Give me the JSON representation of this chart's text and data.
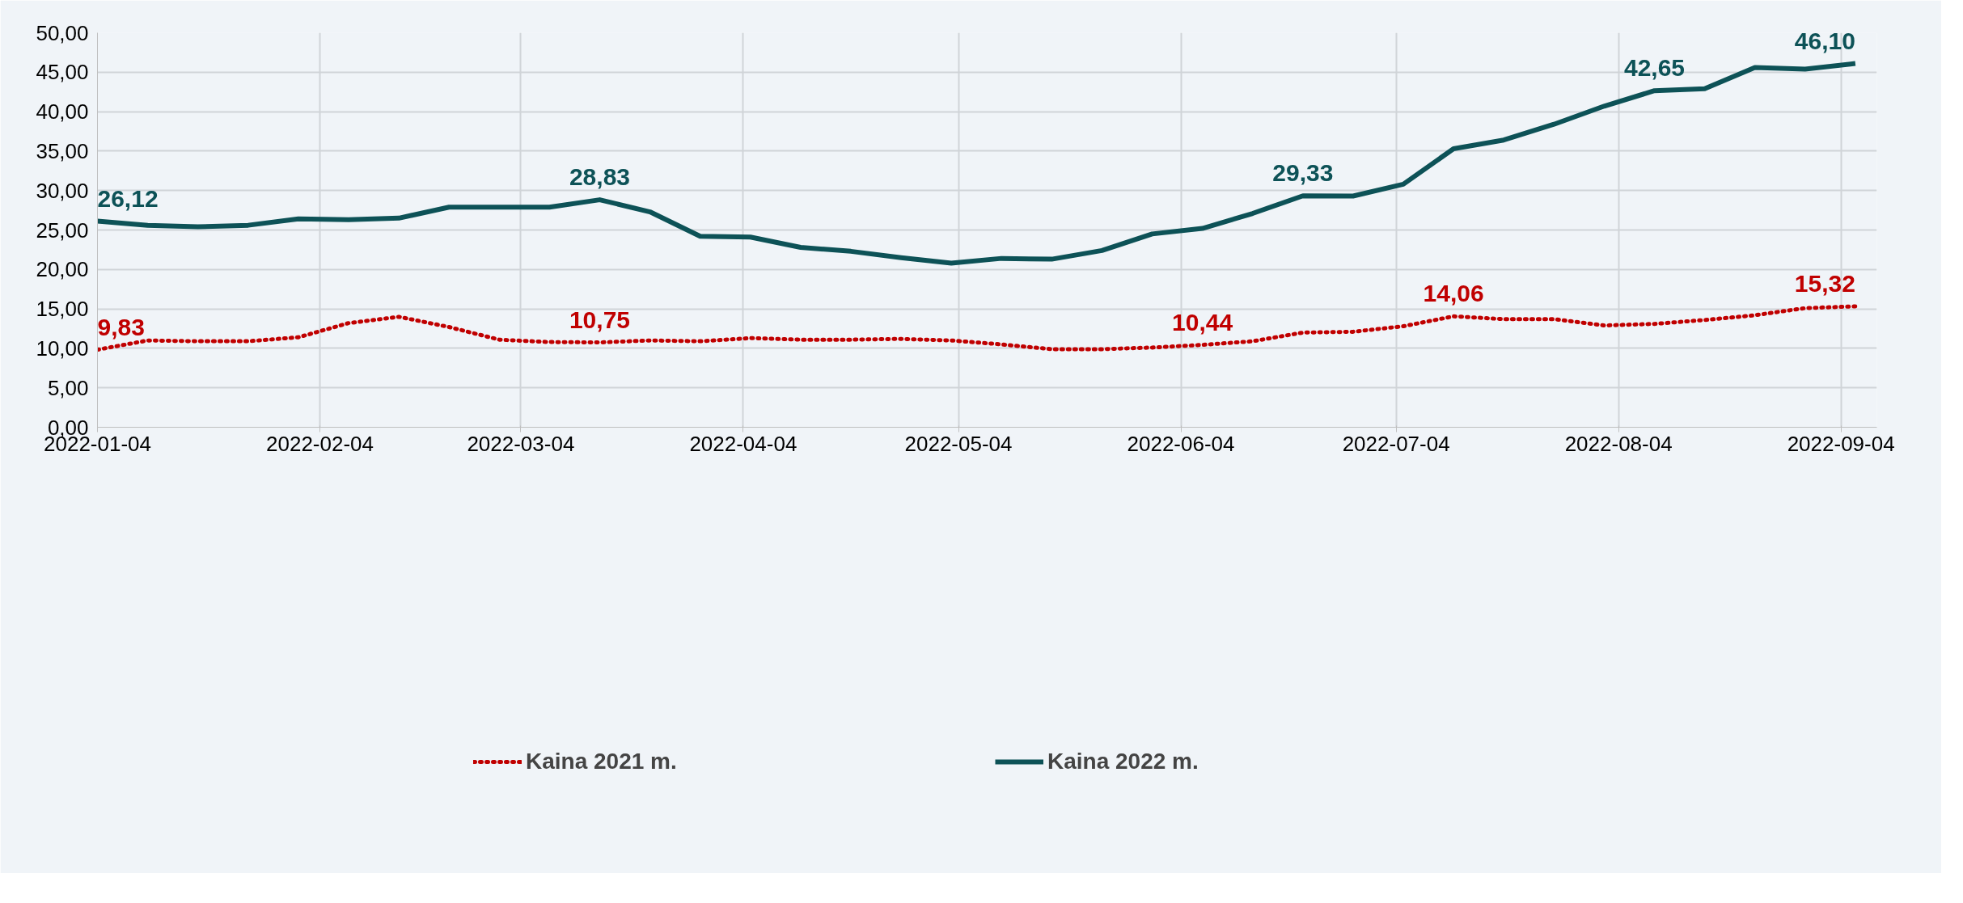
{
  "chart_data": {
    "type": "line",
    "x": [
      "2022-01-04",
      "2022-01-11",
      "2022-01-18",
      "2022-01-25",
      "2022-02-01",
      "2022-02-08",
      "2022-02-15",
      "2022-02-22",
      "2022-03-01",
      "2022-03-08",
      "2022-03-15",
      "2022-03-22",
      "2022-03-29",
      "2022-04-05",
      "2022-04-12",
      "2022-04-19",
      "2022-04-26",
      "2022-05-03",
      "2022-05-10",
      "2022-05-17",
      "2022-05-24",
      "2022-05-31",
      "2022-06-07",
      "2022-06-14",
      "2022-06-21",
      "2022-06-28",
      "2022-07-05",
      "2022-07-12",
      "2022-07-19",
      "2022-07-26",
      "2022-08-02",
      "2022-08-09",
      "2022-08-16",
      "2022-08-23",
      "2022-08-30",
      "2022-09-06"
    ],
    "series": [
      {
        "name": "Kaina 2021 m.",
        "color": "#c00000",
        "line_style": "dotted",
        "values": [
          9.83,
          11.0,
          10.9,
          10.9,
          11.4,
          13.2,
          14.0,
          12.7,
          11.1,
          10.8,
          10.75,
          11.0,
          10.9,
          11.3,
          11.1,
          11.1,
          11.2,
          11.0,
          10.5,
          9.9,
          9.9,
          10.1,
          10.44,
          10.9,
          12.0,
          12.1,
          12.8,
          14.06,
          13.7,
          13.7,
          12.9,
          13.1,
          13.6,
          14.2,
          15.1,
          15.32
        ],
        "value_labels": [
          "9,83",
          null,
          null,
          null,
          null,
          null,
          null,
          null,
          null,
          null,
          "10,75",
          null,
          null,
          null,
          null,
          null,
          null,
          null,
          null,
          null,
          null,
          null,
          "10,44",
          null,
          null,
          null,
          null,
          "14,06",
          null,
          null,
          null,
          null,
          null,
          null,
          null,
          "15,32"
        ]
      },
      {
        "name": "Kaina 2022 m.",
        "color": "#0d5257",
        "line_style": "solid",
        "values": [
          26.12,
          25.6,
          25.4,
          25.6,
          26.4,
          26.3,
          26.5,
          27.9,
          27.9,
          27.9,
          28.83,
          27.3,
          24.2,
          24.1,
          22.8,
          22.3,
          21.5,
          20.8,
          21.4,
          21.3,
          22.4,
          24.5,
          25.2,
          27.1,
          29.33,
          29.3,
          30.8,
          35.3,
          36.4,
          38.4,
          40.7,
          42.65,
          42.9,
          45.6,
          45.4,
          46.1
        ],
        "value_labels": [
          "26,12",
          null,
          null,
          null,
          null,
          null,
          null,
          null,
          null,
          null,
          "28,83",
          null,
          null,
          null,
          null,
          null,
          null,
          null,
          null,
          null,
          null,
          null,
          null,
          null,
          "29,33",
          null,
          null,
          null,
          null,
          null,
          null,
          "42,65",
          null,
          null,
          null,
          "46,10"
        ]
      }
    ],
    "xlim": [
      "2022-01-04",
      "2022-09-09"
    ],
    "xticks": [
      {
        "value": "2022-01-04",
        "label": "2022-01-04"
      },
      {
        "value": "2022-02-04",
        "label": "2022-02-04"
      },
      {
        "value": "2022-03-04",
        "label": "2022-03-04"
      },
      {
        "value": "2022-04-04",
        "label": "2022-04-04"
      },
      {
        "value": "2022-05-04",
        "label": "2022-05-04"
      },
      {
        "value": "2022-06-04",
        "label": "2022-06-04"
      },
      {
        "value": "2022-07-04",
        "label": "2022-07-04"
      },
      {
        "value": "2022-08-04",
        "label": "2022-08-04"
      },
      {
        "value": "2022-09-04",
        "label": "2022-09-04"
      }
    ],
    "ylim": [
      0,
      50
    ],
    "yticks": [
      {
        "value": 0,
        "label": "0,00"
      },
      {
        "value": 5,
        "label": "5,00"
      },
      {
        "value": 10,
        "label": "10,00"
      },
      {
        "value": 15,
        "label": "15,00"
      },
      {
        "value": 20,
        "label": "20,00"
      },
      {
        "value": 25,
        "label": "25,00"
      },
      {
        "value": 30,
        "label": "30,00"
      },
      {
        "value": 35,
        "label": "35,00"
      },
      {
        "value": 40,
        "label": "40,00"
      },
      {
        "value": 45,
        "label": "45,00"
      },
      {
        "value": 50,
        "label": "50,00"
      }
    ],
    "grid": true,
    "legend": "bottom",
    "marker": "none"
  }
}
